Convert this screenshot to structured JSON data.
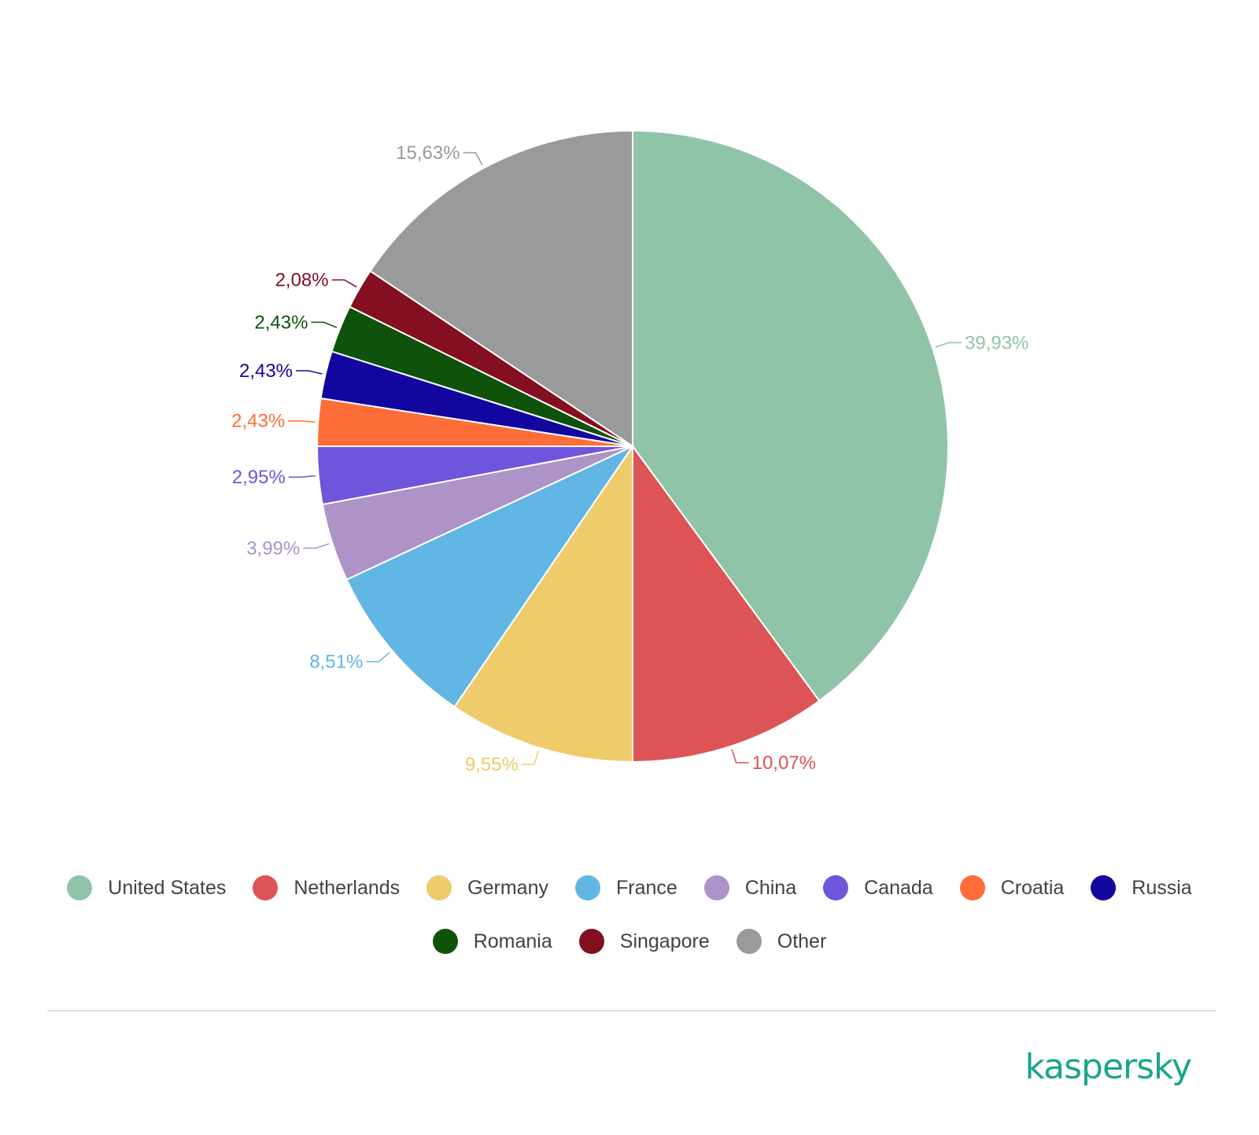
{
  "chart_data": {
    "type": "pie",
    "categories": [
      "United States",
      "Netherlands",
      "Germany",
      "France",
      "China",
      "Canada",
      "Croatia",
      "Russia",
      "Romania",
      "Singapore",
      "Other"
    ],
    "values": [
      39.93,
      10.07,
      9.55,
      8.51,
      3.99,
      2.95,
      2.43,
      2.43,
      2.43,
      2.08,
      15.63
    ],
    "value_labels": [
      "39,93%",
      "10,07%",
      "9,55%",
      "8,51%",
      "3,99%",
      "2,95%",
      "2,43%",
      "2,43%",
      "2,43%",
      "2,08%",
      "15,63%"
    ],
    "colors": [
      "#8fc4a8",
      "#dc5456",
      "#eecb6b",
      "#61b6e3",
      "#ad93c8",
      "#6e55db",
      "#ff6d38",
      "#13069e",
      "#0f520c",
      "#840f20",
      "#9a9a9a"
    ],
    "start_angle": "12 o'clock",
    "direction": "clockwise",
    "legend_placement": "bottom"
  },
  "brand": {
    "logo_text": "kaspersky",
    "logo_color": "#1aa58a"
  }
}
